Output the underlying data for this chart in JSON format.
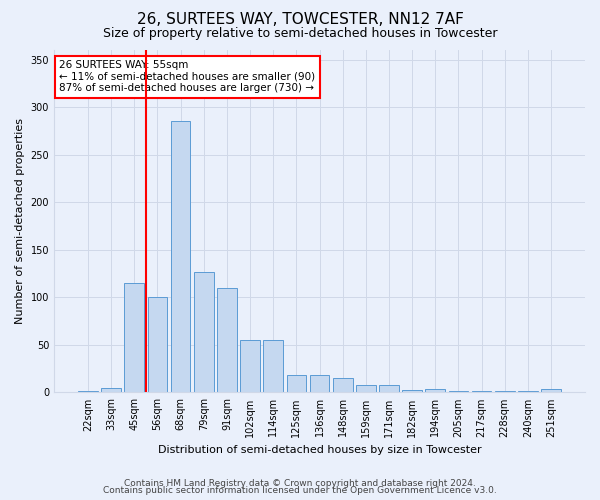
{
  "title": "26, SURTEES WAY, TOWCESTER, NN12 7AF",
  "subtitle": "Size of property relative to semi-detached houses in Towcester",
  "xlabel": "Distribution of semi-detached houses by size in Towcester",
  "ylabel": "Number of semi-detached properties",
  "categories": [
    "22sqm",
    "33sqm",
    "45sqm",
    "56sqm",
    "68sqm",
    "79sqm",
    "91sqm",
    "102sqm",
    "114sqm",
    "125sqm",
    "136sqm",
    "148sqm",
    "159sqm",
    "171sqm",
    "182sqm",
    "194sqm",
    "205sqm",
    "217sqm",
    "228sqm",
    "240sqm",
    "251sqm"
  ],
  "values": [
    2,
    5,
    115,
    100,
    285,
    127,
    110,
    55,
    55,
    18,
    18,
    15,
    8,
    8,
    3,
    4,
    1,
    1,
    1,
    1,
    4
  ],
  "bar_color": "#c5d8f0",
  "bar_edge_color": "#5b9bd5",
  "grid_color": "#d0d8e8",
  "background_color": "#eaf0fb",
  "annotation_text_line1": "26 SURTEES WAY: 55sqm",
  "annotation_text_line2": "← 11% of semi-detached houses are smaller (90)",
  "annotation_text_line3": "87% of semi-detached houses are larger (730) →",
  "annotation_box_color": "white",
  "annotation_box_edge_color": "red",
  "property_line_color": "red",
  "footer_line1": "Contains HM Land Registry data © Crown copyright and database right 2024.",
  "footer_line2": "Contains public sector information licensed under the Open Government Licence v3.0.",
  "ylim": [
    0,
    360
  ],
  "yticks": [
    0,
    50,
    100,
    150,
    200,
    250,
    300,
    350
  ],
  "title_fontsize": 11,
  "subtitle_fontsize": 9,
  "axis_label_fontsize": 8,
  "tick_fontsize": 7,
  "annotation_fontsize": 7.5,
  "footer_fontsize": 6.5,
  "property_line_bin_index": 3
}
